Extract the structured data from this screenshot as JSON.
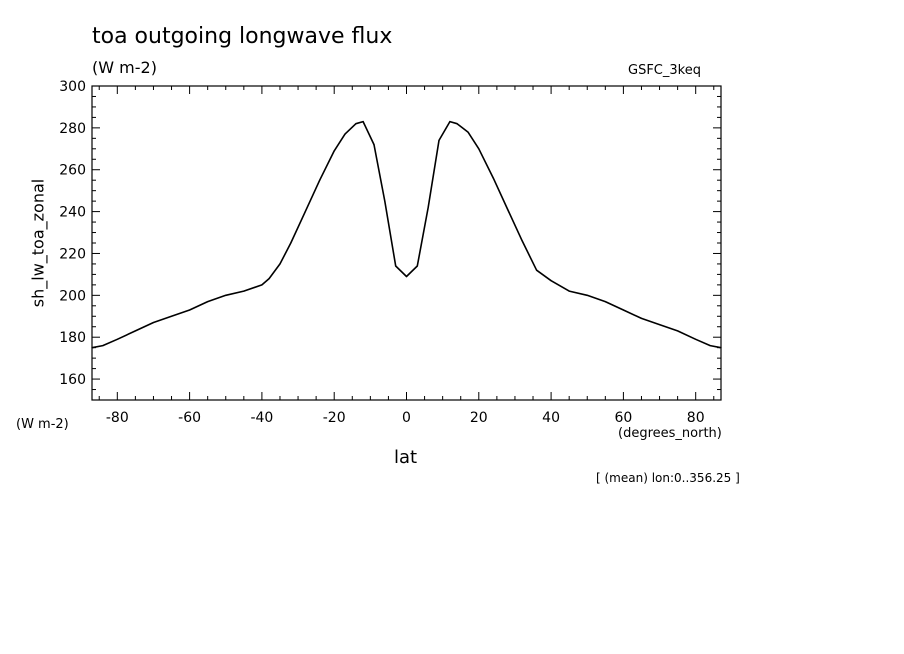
{
  "chart_data": {
    "type": "line",
    "title": "toa outgoing longwave flux",
    "subtitle": "(W m-2)",
    "source_label": "GSFC_3keq",
    "ylabel": "sh_lw_toa_zonal",
    "ylabel_units": "(W m-2)",
    "xlabel": "lat",
    "xlabel_units": "(degrees_north)",
    "footnote": "[ (mean) lon:0..356.25 ]",
    "xlim": [
      -87,
      87
    ],
    "ylim": [
      150,
      300
    ],
    "x_ticks": [
      -80,
      -60,
      -40,
      -20,
      0,
      20,
      40,
      60,
      80
    ],
    "x_tick_labels": [
      "-80",
      "-60",
      "-40",
      "-20",
      "0",
      "20",
      "40",
      "60",
      "80"
    ],
    "y_ticks": [
      160,
      180,
      200,
      220,
      240,
      260,
      280,
      300
    ],
    "y_tick_labels": [
      "160",
      "180",
      "200",
      "220",
      "240",
      "260",
      "280",
      "300"
    ],
    "grid": false,
    "series": [
      {
        "x": [
          -87,
          -84,
          -80,
          -75,
          -70,
          -65,
          -60,
          -55,
          -50,
          -45,
          -40,
          -38,
          -35,
          -32,
          -28,
          -24,
          -20,
          -17,
          -14,
          -12,
          -9,
          -6,
          -3,
          0,
          3,
          6,
          9,
          12,
          14,
          17,
          20,
          24,
          28,
          32,
          36,
          40,
          45,
          50,
          55,
          60,
          65,
          70,
          75,
          80,
          84,
          87
        ],
        "y": [
          175,
          176,
          179,
          183,
          187,
          190,
          193,
          197,
          200,
          202,
          205,
          208,
          215,
          225,
          240,
          255,
          269,
          277,
          282,
          283,
          272,
          245,
          214,
          209,
          214,
          242,
          274,
          283,
          282,
          278,
          270,
          256,
          241,
          226,
          212,
          207,
          202,
          200,
          197,
          193,
          189,
          186,
          183,
          179,
          176,
          175
        ]
      }
    ]
  }
}
